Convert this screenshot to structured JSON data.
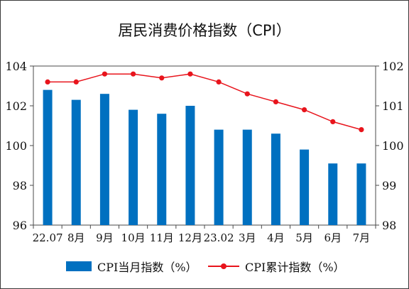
{
  "chart_data": {
    "type": "bar+line",
    "title": "居民消费价格指数（CPI）",
    "categories": [
      "22.07",
      "8月",
      "9月",
      "10月",
      "11月",
      "12月",
      "23.02",
      "3月",
      "4月",
      "5月",
      "6月",
      "7月"
    ],
    "series": [
      {
        "name": "CPI当月指数（%）",
        "type": "bar",
        "axis": "left",
        "color": "#0070c0",
        "values": [
          102.8,
          102.3,
          102.6,
          101.8,
          101.6,
          102.0,
          100.8,
          100.8,
          100.6,
          99.8,
          99.1,
          99.1
        ]
      },
      {
        "name": "CPI累计指数（%）",
        "type": "line",
        "axis": "right",
        "color": "#e8141c",
        "values": [
          101.6,
          101.6,
          101.8,
          101.8,
          101.7,
          101.8,
          101.6,
          101.3,
          101.1,
          100.9,
          100.6,
          100.4
        ]
      }
    ],
    "y_left": {
      "min": 96,
      "max": 104,
      "ticks": [
        "96",
        "98",
        "100",
        "102",
        "104"
      ]
    },
    "y_right": {
      "min": 98,
      "max": 102,
      "ticks": [
        "98",
        "99",
        "100",
        "101",
        "102"
      ]
    },
    "grid": false,
    "legend_position": "bottom"
  }
}
